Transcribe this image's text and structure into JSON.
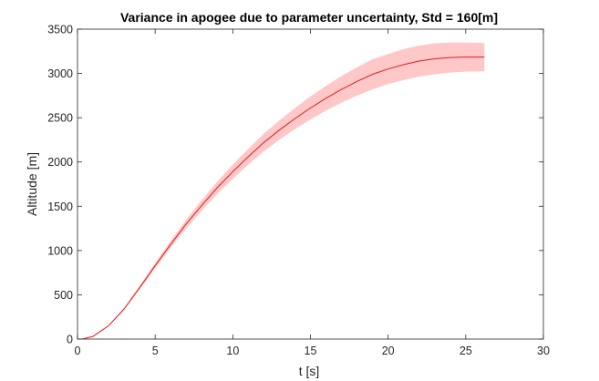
{
  "chart_data": {
    "type": "area",
    "title": "Variance in apogee due to parameter uncertainty, Std = 160[m]",
    "xlabel": "t [s]",
    "ylabel": "Altitude [m]",
    "xlim": [
      0,
      30
    ],
    "ylim": [
      0,
      3500
    ],
    "xticks": [
      0,
      5,
      10,
      15,
      20,
      25,
      30
    ],
    "yticks": [
      0,
      500,
      1000,
      1500,
      2000,
      2500,
      3000,
      3500
    ],
    "xtick_labels": [
      "0",
      "5",
      "10",
      "15",
      "20",
      "25",
      "30"
    ],
    "ytick_labels": [
      "0",
      "500",
      "1000",
      "1500",
      "2000",
      "2500",
      "3000",
      "3500"
    ],
    "grid": false,
    "series": [
      {
        "line_color": "#e41a1a",
        "band_color": "#ffc8c8",
        "x": [
          0.3,
          1,
          2,
          3,
          4,
          5,
          6,
          7,
          8,
          9,
          10,
          11,
          12,
          13,
          14,
          15,
          16,
          17,
          18,
          19,
          20,
          21,
          22,
          23,
          24,
          25,
          26.2
        ],
        "y": [
          0,
          30,
          150,
          340,
          580,
          830,
          1070,
          1300,
          1510,
          1710,
          1890,
          2060,
          2220,
          2360,
          2490,
          2610,
          2720,
          2820,
          2910,
          2990,
          3050,
          3100,
          3140,
          3165,
          3180,
          3185,
          3185
        ],
        "lower": [
          0,
          28,
          145,
          330,
          560,
          800,
          1030,
          1250,
          1450,
          1640,
          1810,
          1970,
          2120,
          2250,
          2370,
          2480,
          2580,
          2670,
          2750,
          2820,
          2880,
          2925,
          2965,
          2990,
          3010,
          3020,
          3025
        ],
        "upper": [
          0,
          32,
          155,
          350,
          600,
          860,
          1110,
          1350,
          1570,
          1780,
          1970,
          2150,
          2320,
          2470,
          2610,
          2740,
          2860,
          2970,
          3070,
          3160,
          3220,
          3275,
          3315,
          3340,
          3350,
          3350,
          3345
        ]
      }
    ]
  }
}
